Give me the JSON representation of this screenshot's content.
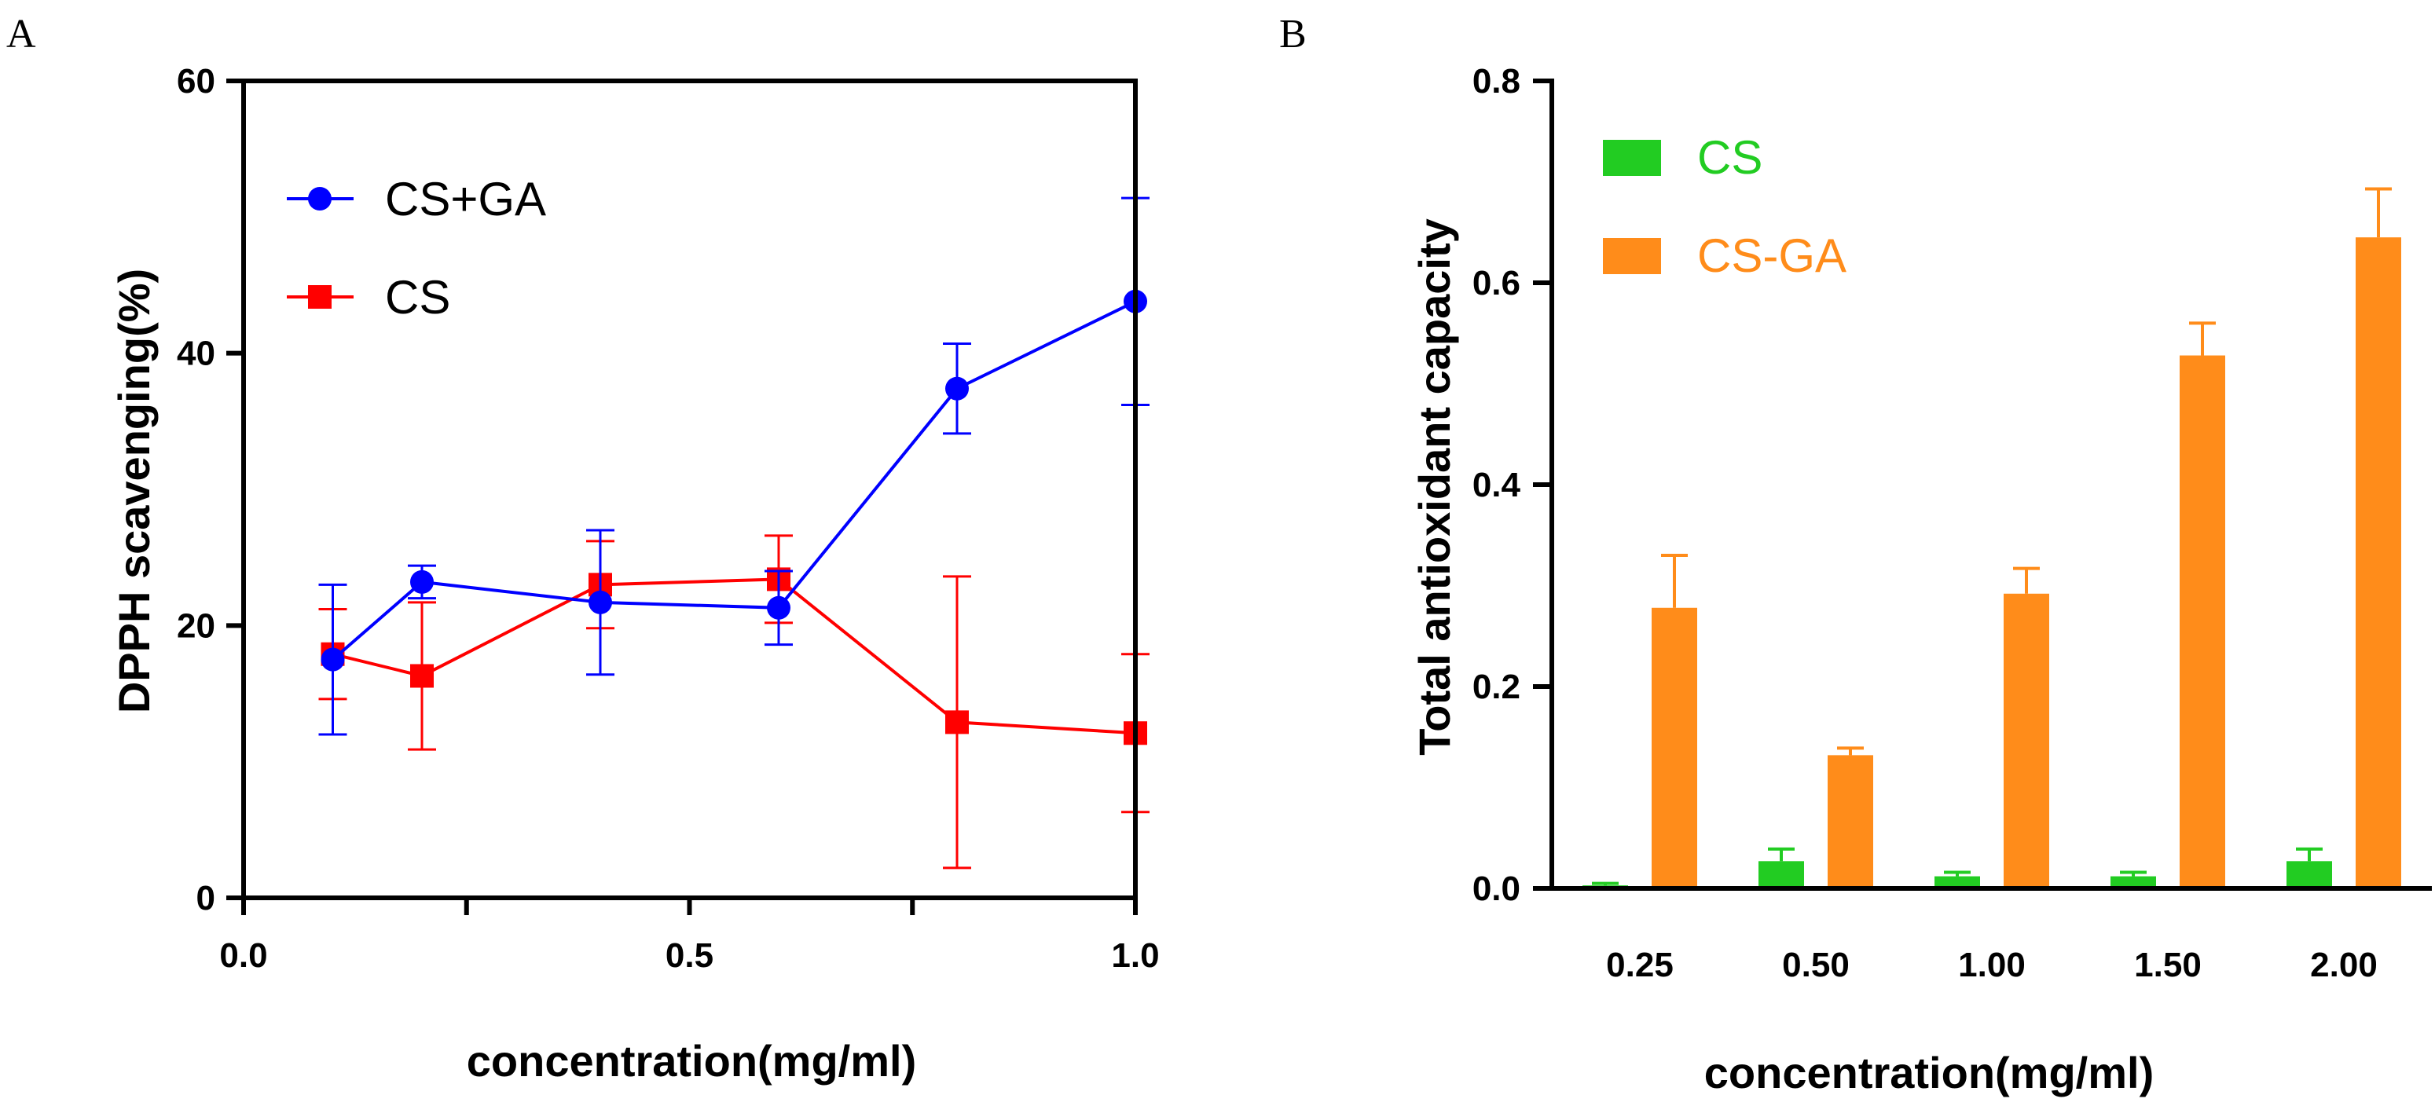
{
  "chart_data": [
    {
      "panel": "A",
      "type": "line",
      "title": "",
      "xlabel": "concentration(mg/ml)",
      "ylabel": "DPPH scavenging(%)",
      "xlim": [
        0,
        1
      ],
      "ylim": [
        0,
        60
      ],
      "xticks": [
        0,
        0.25,
        0.5,
        0.75,
        1
      ],
      "xtick_labels": [
        "0.0",
        "",
        "0.5",
        "",
        "1.0"
      ],
      "yticks": [
        0,
        20,
        40,
        60
      ],
      "ytick_labels": [
        "0",
        "20",
        "40",
        "60"
      ],
      "grid": false,
      "legend_position": "top-left",
      "series": [
        {
          "name": "CS+GA",
          "color": "#0000ff",
          "marker": "circle",
          "x": [
            0.1,
            0.2,
            0.4,
            0.6,
            0.8,
            1.0
          ],
          "y": [
            17.5,
            23.2,
            21.7,
            21.3,
            37.4,
            43.8
          ],
          "err": [
            5.5,
            1.2,
            5.3,
            2.7,
            3.3,
            7.6
          ]
        },
        {
          "name": "CS",
          "color": "#ff0000",
          "marker": "square",
          "x": [
            0.1,
            0.2,
            0.4,
            0.6,
            0.8,
            1.0
          ],
          "y": [
            17.9,
            16.3,
            23.0,
            23.4,
            12.9,
            12.1
          ],
          "err": [
            3.3,
            5.4,
            3.2,
            3.2,
            10.7,
            5.8
          ]
        }
      ]
    },
    {
      "panel": "B",
      "type": "bar",
      "title": "",
      "xlabel": "concentration(mg/ml)",
      "ylabel": "Total antioxidant capacity",
      "categories": [
        "0.25",
        "0.50",
        "1.00",
        "1.50",
        "2.00"
      ],
      "ylim": [
        0,
        0.8
      ],
      "yticks": [
        0,
        0.2,
        0.4,
        0.6,
        0.8
      ],
      "ytick_labels": [
        "0.0",
        "0.2",
        "0.4",
        "0.6",
        "0.8"
      ],
      "grid": false,
      "legend_position": "top-left",
      "series": [
        {
          "name": "CS",
          "color": "#22cc22",
          "values": [
            0.003,
            0.027,
            0.012,
            0.012,
            0.027
          ],
          "err": [
            0.002,
            0.012,
            0.004,
            0.004,
            0.012
          ]
        },
        {
          "name": "CS-GA",
          "color": "#ff8c1a",
          "values": [
            0.278,
            0.132,
            0.292,
            0.528,
            0.645
          ],
          "err": [
            0.052,
            0.007,
            0.025,
            0.032,
            0.048
          ]
        }
      ]
    }
  ]
}
